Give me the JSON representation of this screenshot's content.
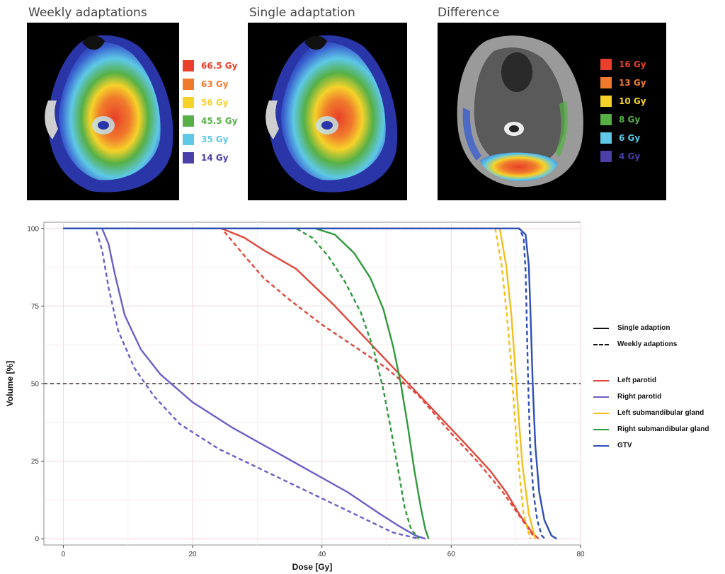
{
  "panels": [
    {
      "title": "Weekly adaptations",
      "legend": [
        {
          "label": "66.5 Gy",
          "color": "#e8402a"
        },
        {
          "label": "63 Gy",
          "color": "#f07a2c"
        },
        {
          "label": "56 Gy",
          "color": "#f5d22a"
        },
        {
          "label": "45.5 Gy",
          "color": "#56b046"
        },
        {
          "label": "35 Gy",
          "color": "#5ec8e6"
        },
        {
          "label": "14 Gy",
          "color": "#4b3fa8"
        }
      ]
    },
    {
      "title": "Single adaptation",
      "legend": []
    },
    {
      "title": "Difference",
      "legend": [
        {
          "label": "16 Gy",
          "color": "#e8402a"
        },
        {
          "label": "13 Gy",
          "color": "#f07a2c"
        },
        {
          "label": "10 Gy",
          "color": "#f5d22a"
        },
        {
          "label": "8 Gy",
          "color": "#56b046"
        },
        {
          "label": "6 Gy",
          "color": "#5ec8e6"
        },
        {
          "label": "4 Gy",
          "color": "#4b3fa8"
        }
      ]
    }
  ],
  "chart_data": {
    "type": "line",
    "title": "",
    "xlabel": "Dose [Gy]",
    "ylabel": "Volume [%]",
    "xlim": [
      -3,
      80
    ],
    "ylim": [
      -2,
      102
    ],
    "xticks": [
      0,
      20,
      40,
      60,
      80
    ],
    "yticks": [
      0,
      25,
      50,
      75,
      100
    ],
    "grid": true,
    "reference_line": {
      "y": 50,
      "style": "dashed"
    },
    "style_legend": [
      {
        "label": "Single adaption",
        "dash": "solid"
      },
      {
        "label": "Weekly adaptions",
        "dash": "dashed"
      }
    ],
    "series": [
      {
        "name": "Left parotid",
        "color": "#e0463a",
        "dash": "solid",
        "x": [
          0,
          24.5,
          28,
          31,
          36,
          42,
          47,
          52,
          57,
          62,
          66,
          68.5,
          70.5,
          72.5,
          73.5
        ],
        "y": [
          100,
          100,
          97,
          93,
          87,
          75,
          64,
          53,
          42,
          31,
          22,
          15,
          8,
          2,
          0
        ]
      },
      {
        "name": "Left parotid",
        "color": "#e0463a",
        "dash": "dashed",
        "x": [
          0,
          24.5,
          26.5,
          28.5,
          31,
          35,
          40,
          45,
          50,
          55,
          60,
          64,
          68,
          71,
          73
        ],
        "y": [
          100,
          100,
          95,
          90,
          84,
          77,
          69,
          62,
          55,
          46,
          34,
          25,
          15,
          6,
          0
        ]
      },
      {
        "name": "Right parotid",
        "color": "#6a5fc8",
        "dash": "solid",
        "x": [
          0,
          6,
          7,
          8,
          9.5,
          12,
          15,
          20,
          26,
          32,
          38,
          44,
          49,
          52,
          54.5,
          56
        ],
        "y": [
          100,
          100,
          95,
          85,
          72,
          61,
          53,
          44,
          36,
          29,
          22,
          15,
          8,
          4,
          1,
          0
        ]
      },
      {
        "name": "Right parotid",
        "color": "#6a5fc8",
        "dash": "dashed",
        "x": [
          0,
          5,
          6,
          7,
          8.5,
          11,
          14,
          18,
          24,
          30,
          36,
          42,
          47,
          51,
          55
        ],
        "y": [
          100,
          100,
          93,
          81,
          67,
          55,
          46,
          37,
          29,
          23,
          17,
          11,
          6,
          2,
          0
        ]
      },
      {
        "name": "Left submandibular gland",
        "color": "#f2c01e",
        "dash": "solid",
        "x": [
          0,
          67.5,
          68.5,
          69.3,
          69.8,
          70.4,
          71,
          72,
          73
        ],
        "y": [
          100,
          100,
          88,
          72,
          58,
          40,
          24,
          8,
          0
        ]
      },
      {
        "name": "Left submandibular gland",
        "color": "#f2c01e",
        "dash": "dashed",
        "x": [
          0,
          66.8,
          67.8,
          68.6,
          69.2,
          69.8,
          70.4,
          71.2,
          72.2
        ],
        "y": [
          100,
          100,
          88,
          72,
          58,
          40,
          24,
          8,
          0
        ]
      },
      {
        "name": "Right submandibular gland",
        "color": "#2f9a3c",
        "dash": "solid",
        "x": [
          0,
          39,
          42,
          45,
          47.5,
          49.5,
          51,
          52.2,
          53.3,
          54.3,
          55.3,
          56,
          56.5
        ],
        "y": [
          100,
          100,
          98,
          92,
          84,
          74,
          62,
          50,
          36,
          22,
          10,
          3,
          0
        ]
      },
      {
        "name": "Right submandibular gland",
        "color": "#2f9a3c",
        "dash": "dashed",
        "x": [
          0,
          36,
          38.5,
          41,
          43.5,
          46,
          48,
          49.5,
          50.7,
          51.8,
          52.8,
          53.8,
          55
        ],
        "y": [
          100,
          100,
          97,
          91,
          83,
          73,
          61,
          48,
          35,
          22,
          10,
          3,
          0
        ]
      },
      {
        "name": "GTV",
        "color": "#2f4fb8",
        "dash": "solid",
        "x": [
          0,
          70.5,
          71.5,
          72,
          72.3,
          72.6,
          73,
          73.6,
          74.4,
          75.5,
          76.3
        ],
        "y": [
          100,
          100,
          98,
          88,
          70,
          50,
          30,
          15,
          6,
          1,
          0
        ]
      },
      {
        "name": "GTV",
        "color": "#2f4fb8",
        "dash": "dashed",
        "x": [
          0,
          70.5,
          71.2,
          71.5,
          71.7,
          71.9,
          72.2,
          72.7,
          73.3,
          74,
          74.5
        ],
        "y": [
          100,
          100,
          97,
          86,
          68,
          50,
          30,
          15,
          6,
          1,
          0
        ]
      }
    ],
    "legend": [
      {
        "name": "Left parotid",
        "color": "#e0463a"
      },
      {
        "name": "Right parotid",
        "color": "#6a5fc8"
      },
      {
        "name": "Left submandibular gland",
        "color": "#f2c01e"
      },
      {
        "name": "Right submandibular gland",
        "color": "#2f9a3c"
      },
      {
        "name": "GTV",
        "color": "#2f4fb8"
      }
    ]
  }
}
